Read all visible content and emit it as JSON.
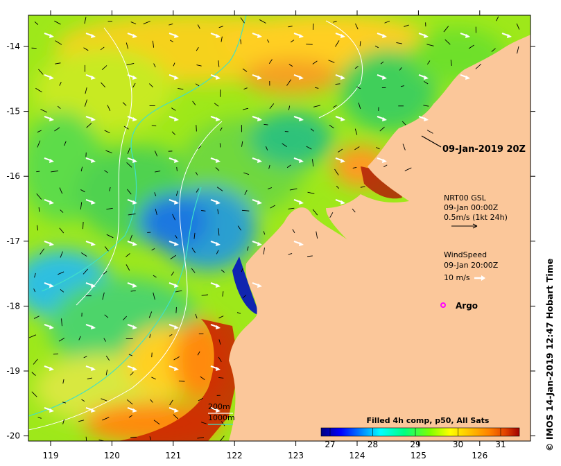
{
  "map": {
    "lon_ticks": [
      "119",
      "120",
      "121",
      "122",
      "123",
      "124",
      "125",
      "126"
    ],
    "lat_ticks": [
      "-14",
      "-15",
      "-16",
      "-17",
      "-18",
      "-19",
      "-20"
    ],
    "timestamp_label": "09-Jan-2019 20Z",
    "current_legend": {
      "title": "NRT00 GSL",
      "date": "09-Jan 00:00Z",
      "scale": "0.5m/s (1kt 24h)"
    },
    "wind_legend": {
      "title": "WindSpeed",
      "date": "09-Jan 20:00Z",
      "scale": "10 m/s"
    },
    "argo_label": "Argo",
    "isobath": {
      "label_200": "200m",
      "label_1000": "1000m"
    },
    "colorbar": {
      "title": "Filled 4h comp, p50, All Sats",
      "ticks": [
        "27",
        "28",
        "29",
        "30",
        "31"
      ],
      "colors": [
        "#000080",
        "#0000ff",
        "#0080ff",
        "#00ffff",
        "#00ff80",
        "#80ff00",
        "#ffff00",
        "#ffc000",
        "#ff8000",
        "#e04000",
        "#a00000"
      ]
    },
    "credit": "© IMOS 14-Jan-2019 12:47 Hobart Time",
    "colors": {
      "land": "#fbc79a",
      "isobath": "#40e0c8",
      "contour": "#ffffff",
      "argo": "#ff00ff"
    }
  }
}
